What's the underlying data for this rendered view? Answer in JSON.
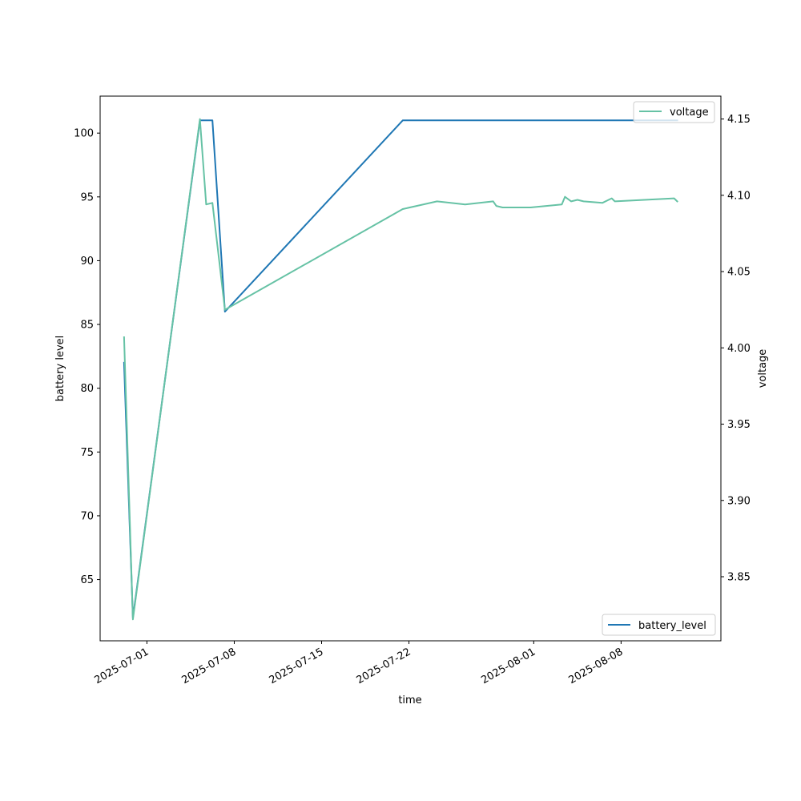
{
  "chart_data": {
    "type": "line",
    "xlabel": "time",
    "ylabel_left": "battery level",
    "ylabel_right": "voltage",
    "xlim": [
      "2025-06-27T06:00",
      "2025-08-16T00:00"
    ],
    "ylim_left": [
      60.2,
      102.9
    ],
    "ylim_right": [
      3.808,
      4.165
    ],
    "x_ticks": [
      "2025-07-01",
      "2025-07-08",
      "2025-07-15",
      "2025-07-22",
      "2025-08-01",
      "2025-08-08"
    ],
    "y_ticks_left": [
      65,
      70,
      75,
      80,
      85,
      90,
      95,
      100
    ],
    "y_ticks_right": [
      3.85,
      3.9,
      3.95,
      4.0,
      4.05,
      4.1,
      4.15
    ],
    "y_tick_labels_right": [
      "3.85",
      "3.90",
      "3.95",
      "4.00",
      "4.05",
      "4.10",
      "4.15"
    ],
    "grid": false,
    "series": [
      {
        "name": "battery_level",
        "axis": "left",
        "color": "#1f77b4",
        "legend_position": "lower right",
        "points": [
          [
            "2025-06-29T04:00",
            82
          ],
          [
            "2025-06-29T21:00",
            62
          ],
          [
            "2025-07-05T06:00",
            101
          ],
          [
            "2025-07-06T06:00",
            101
          ],
          [
            "2025-07-07T06:00",
            86
          ],
          [
            "2025-07-21T12:00",
            101
          ],
          [
            "2025-08-12T12:00",
            101
          ]
        ]
      },
      {
        "name": "voltage",
        "axis": "right",
        "color": "#66c2a5",
        "legend_position": "upper right",
        "points": [
          [
            "2025-06-29T04:00",
            4.007
          ],
          [
            "2025-06-29T21:00",
            3.822
          ],
          [
            "2025-07-05T06:00",
            4.15
          ],
          [
            "2025-07-05T18:00",
            4.094
          ],
          [
            "2025-07-06T06:00",
            4.095
          ],
          [
            "2025-07-07T06:00",
            4.025
          ],
          [
            "2025-07-21T12:00",
            4.091
          ],
          [
            "2025-07-24T06:00",
            4.096
          ],
          [
            "2025-07-26T12:00",
            4.094
          ],
          [
            "2025-07-28T18:00",
            4.096
          ],
          [
            "2025-07-29T00:00",
            4.093
          ],
          [
            "2025-07-29T12:00",
            4.092
          ],
          [
            "2025-07-31T18:00",
            4.092
          ],
          [
            "2025-08-03T06:00",
            4.094
          ],
          [
            "2025-08-03T12:00",
            4.099
          ],
          [
            "2025-08-04T00:00",
            4.096
          ],
          [
            "2025-08-04T12:00",
            4.097
          ],
          [
            "2025-08-05T00:00",
            4.096
          ],
          [
            "2025-08-06T12:00",
            4.095
          ],
          [
            "2025-08-07T06:00",
            4.098
          ],
          [
            "2025-08-07T12:00",
            4.096
          ],
          [
            "2025-08-12T06:00",
            4.098
          ],
          [
            "2025-08-12T12:00",
            4.096
          ]
        ]
      }
    ]
  }
}
